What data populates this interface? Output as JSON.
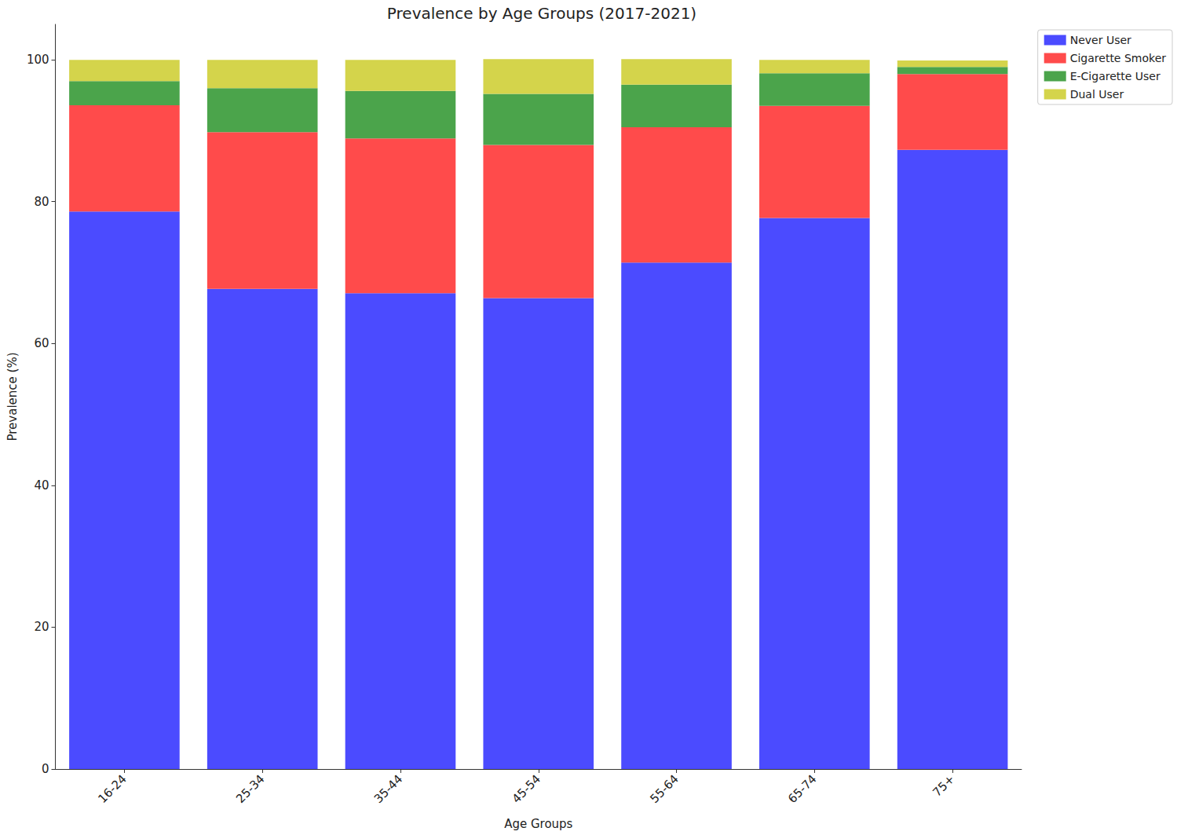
{
  "chart_data": {
    "type": "bar",
    "title": "Prevalence by Age Groups (2017-2021)",
    "x_label": "Age Groups",
    "y_label": "Prevalence (%)",
    "categories": [
      "16-24",
      "25-34",
      "35-44",
      "45-54",
      "55-64",
      "65-74",
      "75+"
    ],
    "series": [
      {
        "name": "Never User",
        "color": "#4b4bff",
        "values": [
          78.6,
          67.7,
          67.1,
          66.4,
          71.4,
          77.7,
          87.3
        ]
      },
      {
        "name": "Cigarette Smoker",
        "color": "#ff4b4b",
        "values": [
          15.0,
          22.1,
          21.8,
          21.6,
          19.1,
          15.8,
          10.7
        ]
      },
      {
        "name": "E-Cigarette User",
        "color": "#4ba44b",
        "values": [
          3.4,
          6.2,
          6.7,
          7.2,
          6.0,
          4.6,
          1.0
        ]
      },
      {
        "name": "Dual User",
        "color": "#d4d44b",
        "values": [
          3.0,
          4.0,
          4.4,
          4.9,
          3.6,
          1.9,
          0.9
        ]
      }
    ],
    "stacked": true,
    "ylim": [
      0,
      105
    ],
    "yticks": [
      0,
      20,
      40,
      60,
      80,
      100
    ],
    "grid": false,
    "legend": "upper right"
  }
}
